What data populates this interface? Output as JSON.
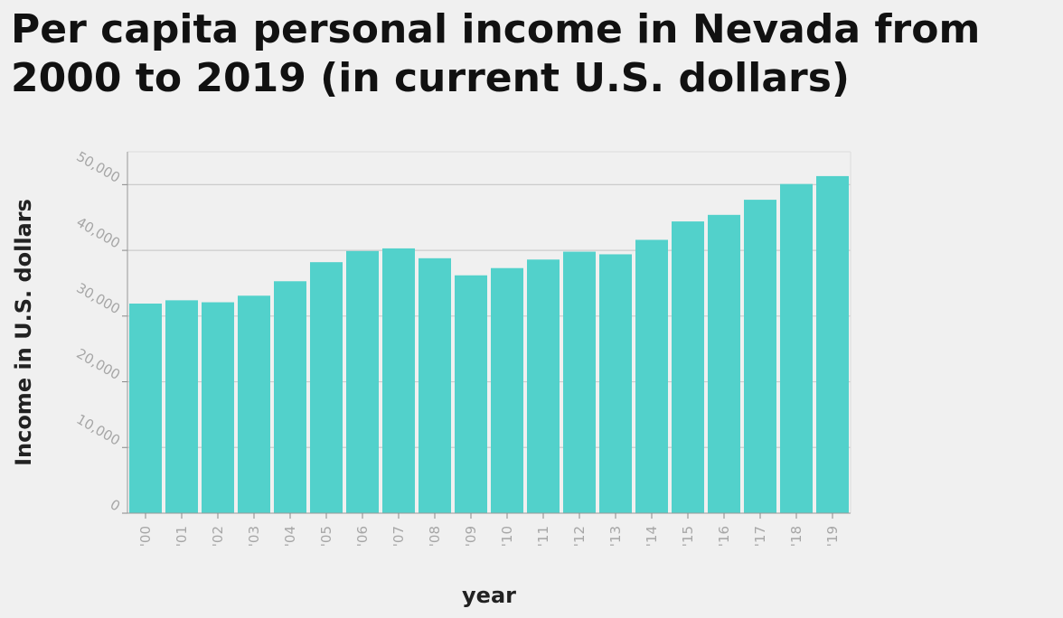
{
  "chart_data": {
    "type": "bar",
    "title": "Per capita personal income in Nevada from 2000 to 2019 (in current U.S. dollars)",
    "xlabel": "year",
    "ylabel": "Income in U.S. dollars",
    "categories": [
      "'00",
      "'01",
      "'02",
      "'03",
      "'04",
      "'05",
      "'06",
      "'07",
      "'08",
      "'09",
      "'10",
      "'11",
      "'12",
      "'13",
      "'14",
      "'15",
      "'16",
      "'17",
      "'18",
      "'19"
    ],
    "values": [
      31900,
      32400,
      32100,
      33100,
      35300,
      38200,
      39900,
      40300,
      38800,
      36200,
      37300,
      38600,
      39800,
      39400,
      41600,
      44400,
      45400,
      47700,
      50100,
      51300
    ],
    "yticks": [
      "0",
      "10,000",
      "20,000",
      "30,000",
      "40,000",
      "50,000"
    ],
    "ytick_values": [
      0,
      10000,
      20000,
      30000,
      40000,
      50000
    ],
    "ylim": [
      0,
      55000
    ],
    "grid": true,
    "bar_color": "#52d1cb"
  }
}
